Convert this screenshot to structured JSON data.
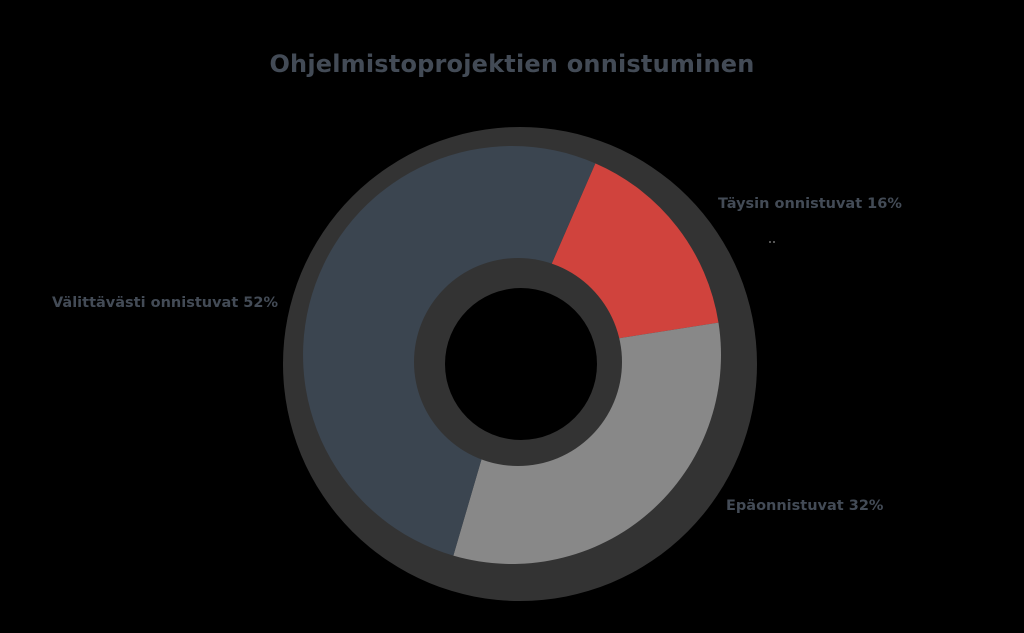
{
  "chart_data": {
    "type": "pie",
    "variant": "donut",
    "title": "Ohjelmistoprojektien onnistuminen",
    "categories": [
      "Täysin onnistuvat",
      "Epäonnistuvat",
      "Välittävästi onnistuvat"
    ],
    "values": [
      16,
      32,
      52
    ],
    "unit": "%",
    "labels": [
      "Täysin onnistuvat 16%",
      "Epäonnistuvat 32%",
      "Välittävästi onnistuvat 52%"
    ],
    "colors": [
      "#d0433d",
      "#888888",
      "#3b4550"
    ],
    "start_angle_deg": 23.5,
    "legend": "none (labels placed beside slices)"
  },
  "colors": {
    "background": "#000000",
    "title": "#434b56",
    "label": "#434b56",
    "outer_ring": "#333333",
    "inner_ring": "#333333",
    "hole": "#000000"
  }
}
